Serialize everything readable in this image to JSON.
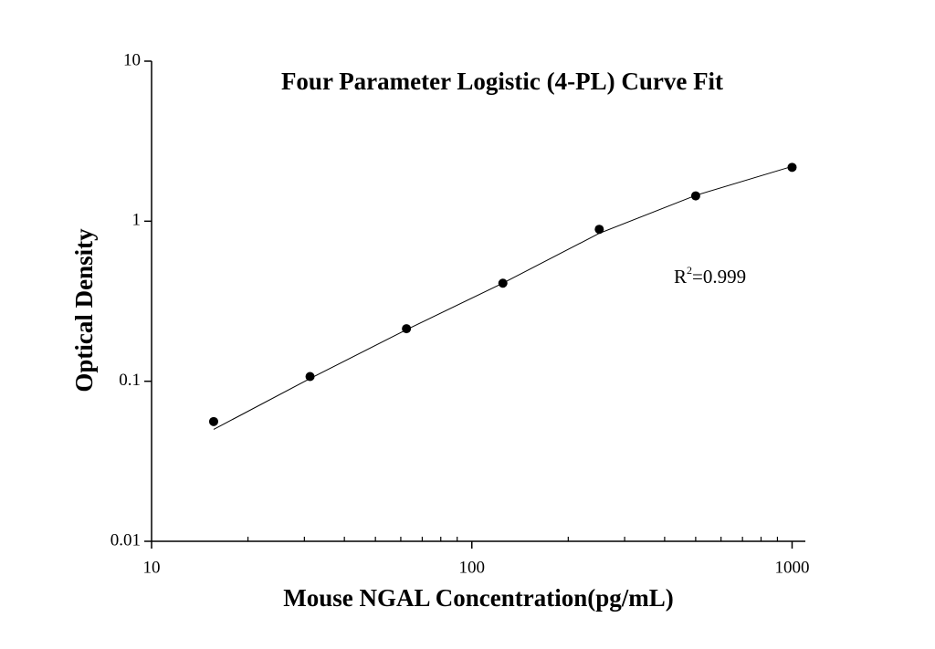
{
  "chart_data": {
    "type": "scatter",
    "title": "Four Parameter Logistic (4-PL) Curve Fit",
    "x_label": "Mouse NGAL Concentration(pg/mL)",
    "y_label": "Optical Density",
    "annotation": [
      "R",
      "2",
      "=0.999"
    ],
    "x": [
      15.625,
      31.25,
      62.5,
      125,
      250,
      500,
      1000
    ],
    "series": [
      {
        "type": "scatter",
        "color": "#000000",
        "values": [
          0.056,
          0.107,
          0.213,
          0.41,
          0.89,
          1.44,
          2.17
        ]
      },
      {
        "type": "line",
        "color": "#000000",
        "values": [
          0.05,
          0.104,
          0.21,
          0.41,
          0.84,
          1.45,
          2.2
        ]
      }
    ],
    "log_x": true,
    "log_y": true,
    "xlim": [
      10,
      1100
    ],
    "ylim": [
      0.01,
      10
    ],
    "xticks": [
      10,
      100,
      1000
    ],
    "xminorticks": [
      20,
      30,
      40,
      50,
      60,
      70,
      80,
      90,
      200,
      300,
      400,
      500,
      600,
      700,
      800,
      900
    ],
    "yticks": [
      0.01,
      0.1,
      1,
      10
    ]
  }
}
